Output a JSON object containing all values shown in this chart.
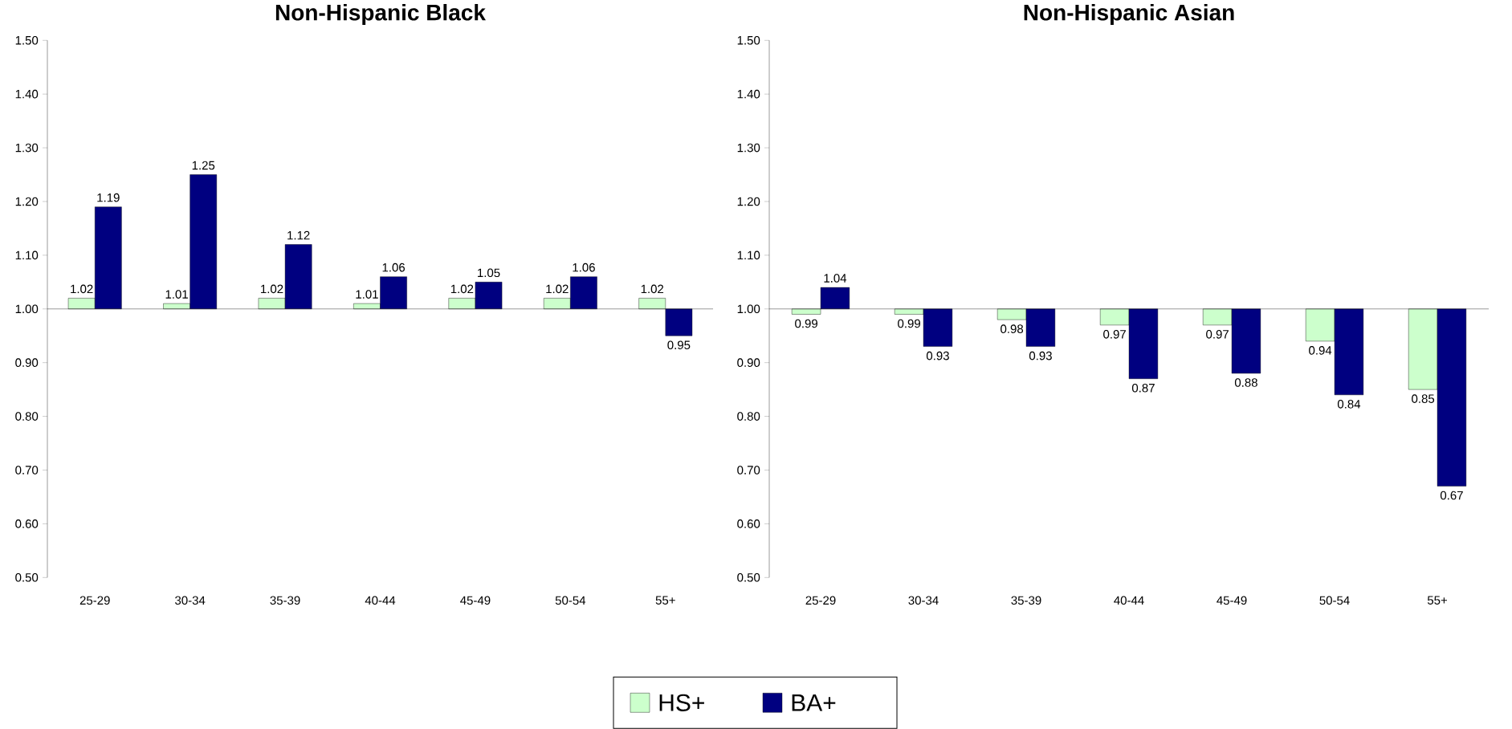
{
  "chart_data": [
    {
      "type": "bar",
      "title": "Non-Hispanic Black",
      "categories": [
        "25-29",
        "30-34",
        "35-39",
        "40-44",
        "45-49",
        "50-54",
        "55+"
      ],
      "series": [
        {
          "name": "HS+",
          "color": "#ccffcc",
          "base": [
            1,
            1,
            1,
            1,
            1,
            1,
            1
          ],
          "values": [
            0.02,
            0.01,
            0.02,
            0.01,
            0.02,
            0.02,
            0.02
          ],
          "value_labels": [
            "1.02",
            "1.01",
            "1.02",
            "1.01",
            "1.02",
            "1.02",
            "1.02"
          ]
        },
        {
          "name": "BA+",
          "color": "#000080",
          "base": [
            1,
            1,
            1,
            1,
            1,
            1,
            1
          ],
          "values": [
            0.19,
            0.25,
            0.12,
            0.06,
            0.05,
            0.06,
            -0.05
          ],
          "value_labels": [
            "1.19",
            "1.25",
            "1.12",
            "1.06",
            "1.05",
            "1.06",
            "0.95"
          ]
        }
      ],
      "ylim": [
        0.5,
        1.5
      ],
      "yticks": [
        {
          "value": 0.5,
          "label": "0.50"
        },
        {
          "value": 0.6,
          "label": "0.60"
        },
        {
          "value": 0.7,
          "label": "0.70"
        },
        {
          "value": 0.8,
          "label": "0.80"
        },
        {
          "value": 0.9,
          "label": "0.90"
        },
        {
          "value": 1.0,
          "label": "1.00"
        },
        {
          "value": 1.1,
          "label": "1.10"
        },
        {
          "value": 1.2,
          "label": "1.20"
        },
        {
          "value": 1.3,
          "label": "1.30"
        },
        {
          "value": 1.4,
          "label": "1.40"
        },
        {
          "value": 1.5,
          "label": "1.50"
        }
      ],
      "ref_lines": [
        {
          "axis": "y",
          "value": 1.0
        }
      ],
      "legend": "bottom"
    },
    {
      "type": "bar",
      "title": "Non-Hispanic Asian",
      "categories": [
        "25-29",
        "30-34",
        "35-39",
        "40-44",
        "45-49",
        "50-54",
        "55+"
      ],
      "series": [
        {
          "color": "#ccffcc",
          "base": [
            1,
            1,
            1,
            1,
            1,
            1,
            1
          ],
          "values": [
            -0.01,
            -0.01,
            -0.02,
            -0.03,
            -0.03,
            -0.06,
            -0.15
          ],
          "value_labels": [
            "0.99",
            "0.99",
            "0.98",
            "0.97",
            "0.97",
            "0.94",
            "0.85"
          ]
        },
        {
          "color": "#000080",
          "base": [
            1,
            1,
            1,
            1,
            1,
            1,
            1
          ],
          "values": [
            0.04,
            -0.07,
            -0.07,
            -0.13,
            -0.12,
            -0.16,
            -0.33
          ],
          "value_labels": [
            "1.04",
            "0.93",
            "0.93",
            "0.87",
            "0.88",
            "0.84",
            "0.67"
          ]
        }
      ],
      "ylim": [
        0.5,
        1.5
      ],
      "yticks": [
        {
          "value": 0.5,
          "label": "0.50"
        },
        {
          "value": 0.6,
          "label": "0.60"
        },
        {
          "value": 0.7,
          "label": "0.70"
        },
        {
          "value": 0.8,
          "label": "0.80"
        },
        {
          "value": 0.9,
          "label": "0.90"
        },
        {
          "value": 1.0,
          "label": "1.00"
        },
        {
          "value": 1.1,
          "label": "1.10"
        },
        {
          "value": 1.2,
          "label": "1.20"
        },
        {
          "value": 1.3,
          "label": "1.30"
        },
        {
          "value": 1.4,
          "label": "1.40"
        },
        {
          "value": 1.5,
          "label": "1.50"
        }
      ],
      "ref_lines": [
        {
          "axis": "y",
          "value": 1.0
        }
      ]
    }
  ]
}
